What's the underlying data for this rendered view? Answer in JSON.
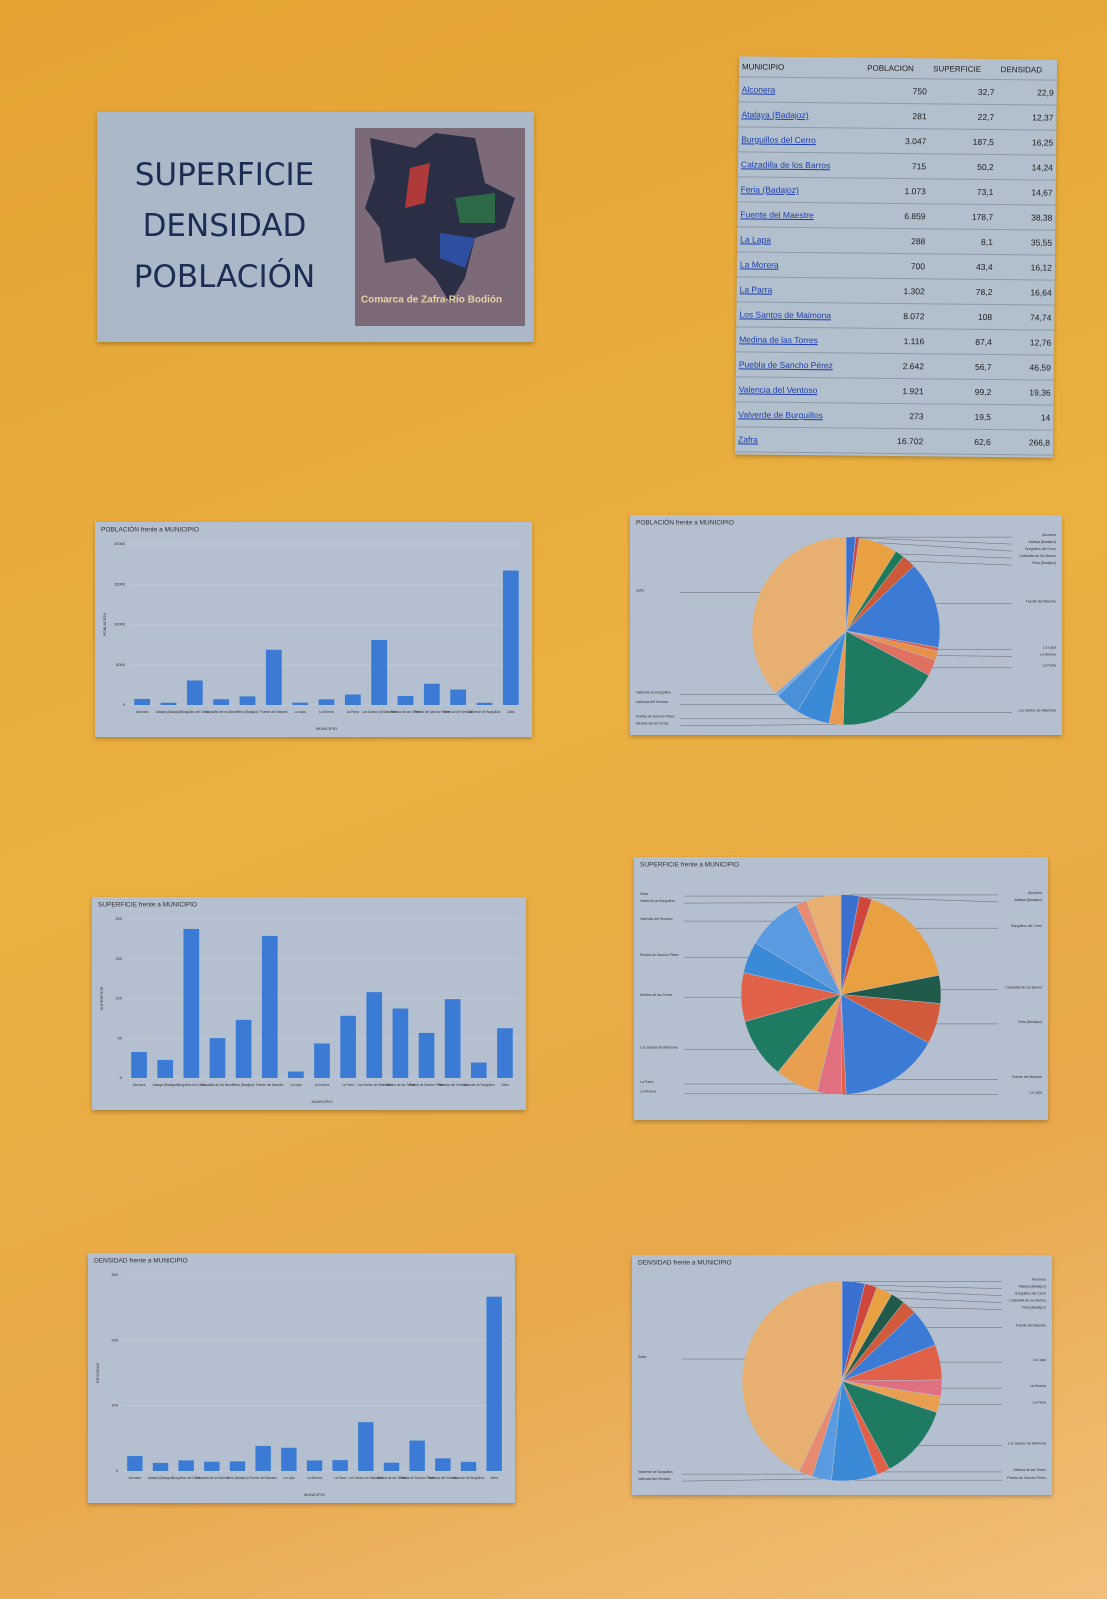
{
  "header": {
    "lines": [
      "SUPERFICIE",
      "DENSIDAD",
      "POBLACIÓN"
    ],
    "map_caption": "Comarca de Zafra-Río Bodión"
  },
  "table": {
    "columns": [
      "MUNICIPIO",
      "POBLACION",
      "SUPERFICIE",
      "DENSIDAD"
    ],
    "rows": [
      [
        "Alconera",
        "750",
        "32,7",
        "22,9"
      ],
      [
        "Atalaya (Badajoz)",
        "281",
        "22,7",
        "12,37"
      ],
      [
        "Burguillos del Cerro",
        "3.047",
        "187,5",
        "16,25"
      ],
      [
        "Calzadilla de los Barros",
        "715",
        "50,2",
        "14,24"
      ],
      [
        "Feria (Badajoz)",
        "1.073",
        "73,1",
        "14,67"
      ],
      [
        "Fuente del Maestre",
        "6.859",
        "178,7",
        "38,38"
      ],
      [
        "La Lapa",
        "288",
        "8,1",
        "35,55"
      ],
      [
        "La Morera",
        "700",
        "43,4",
        "16,12"
      ],
      [
        "La Parra",
        "1.302",
        "78,2",
        "16,64"
      ],
      [
        "Los Santos de Maimona",
        "8.072",
        "108",
        "74,74"
      ],
      [
        "Medina de las Torres",
        "1.116",
        "87,4",
        "12,76"
      ],
      [
        "Puebla de Sancho Pérez",
        "2.642",
        "56,7",
        "46,59"
      ],
      [
        "Valencia del Ventoso",
        "1.921",
        "99,2",
        "19,36"
      ],
      [
        "Valverde de Burguillos",
        "273",
        "19,5",
        "14"
      ],
      [
        "Zafra",
        "16.702",
        "62,6",
        "266,8"
      ]
    ]
  },
  "chart_data": [
    {
      "type": "bar",
      "title": "POBLACIÓN frente a MUNICIPIO",
      "x_label": "MUNICIPIO",
      "y_label": "POBLACIÓN",
      "color": "#3b7bd6",
      "categories": [
        "Alconera",
        "Atalaya (Badajoz)",
        "Burguillos del Cerro",
        "Calzadilla de los Barros",
        "Feria (Badajoz)",
        "Fuente del Maestre",
        "La Lapa",
        "La Morera",
        "La Parra",
        "Los Santos de Maimona",
        "Medina de las Torres",
        "Puebla de Sancho Pérez",
        "Valencia del Ventoso",
        "Valverde de Burguillos",
        "Zafra"
      ],
      "values": [
        750,
        281,
        3047,
        715,
        1073,
        6859,
        288,
        700,
        1302,
        8072,
        1116,
        2642,
        1921,
        273,
        16702
      ],
      "ylim": [
        0,
        20000
      ],
      "yticks": [
        0,
        5000,
        10000,
        15000,
        20000
      ],
      "grid": true
    },
    {
      "type": "pie",
      "title": "POBLACIÓN frente a MUNICIPIO",
      "categories": [
        "Alconera",
        "Atalaya (Badajoz)",
        "Burguillos del Cerro",
        "Calzadilla de los Barros",
        "Feria (Badajoz)",
        "Fuente del Maestre",
        "La Lapa",
        "La Morera",
        "La Parra",
        "Los Santos de Maimona",
        "Medina de las Torres",
        "Puebla de Sancho Pérez",
        "Valencia del Ventoso",
        "Valverde de Burguillos",
        "Zafra"
      ],
      "values": [
        750,
        281,
        3047,
        715,
        1073,
        6859,
        288,
        700,
        1302,
        8072,
        1116,
        2642,
        1921,
        273,
        16702
      ],
      "colors": [
        "#3b6fd0",
        "#d0453c",
        "#e8a040",
        "#1f7a5a",
        "#cc5a3a",
        "#3b7bd6",
        "#e0604a",
        "#e89048",
        "#e07060",
        "#1f7a62",
        "#e89a50",
        "#3a8ad8",
        "#4a90d8",
        "#7aa8e0",
        "#e8b070"
      ]
    },
    {
      "type": "bar",
      "title": "SUPERFICIE frente a MUNICIPIO",
      "x_label": "MUNICIPIO",
      "y_label": "SUPERFICIE",
      "color": "#3b7bd6",
      "categories": [
        "Alconera",
        "Atalaya (Badajoz)",
        "Burguillos del Cerro",
        "Calzadilla de los Barros",
        "Feria (Badajoz)",
        "Fuente del Maestre",
        "La Lapa",
        "La Morera",
        "La Parra",
        "Los Santos de Maimona",
        "Medina de las Torres",
        "Puebla de Sancho Pérez",
        "Valencia del Ventoso",
        "Valverde de Burguillos",
        "Zafra"
      ],
      "values": [
        32.7,
        22.7,
        187.5,
        50.2,
        73.1,
        178.7,
        8.1,
        43.4,
        78.2,
        108,
        87.4,
        56.7,
        99.2,
        19.5,
        62.6
      ],
      "ylim": [
        0,
        200
      ],
      "yticks": [
        0,
        50,
        100,
        150,
        200
      ],
      "grid": true
    },
    {
      "type": "pie",
      "title": "SUPERFICIE frente a MUNICIPIO",
      "categories": [
        "Alconera",
        "Atalaya (Badajoz)",
        "Burguillos del Cerro",
        "Calzadilla de los Barros",
        "Feria (Badajoz)",
        "Fuente del Maestre",
        "La Lapa",
        "La Morera",
        "La Parra",
        "Los Santos de Maimona",
        "Medina de las Torres",
        "Puebla de Sancho Pérez",
        "Valencia del Ventoso",
        "Valverde de Burguillos",
        "Zafra"
      ],
      "values": [
        32.7,
        22.7,
        187.5,
        50.2,
        73.1,
        178.7,
        8.1,
        43.4,
        78.2,
        108,
        87.4,
        56.7,
        99.2,
        19.5,
        62.6
      ],
      "colors": [
        "#3b6fd0",
        "#d0453c",
        "#e8a040",
        "#1f5a4a",
        "#d05a3a",
        "#3b7bd6",
        "#e0604a",
        "#e07080",
        "#e8a050",
        "#1f7a62",
        "#e06048",
        "#3a8ad8",
        "#5a9ae0",
        "#e88a70",
        "#e8b070"
      ]
    },
    {
      "type": "bar",
      "title": "DENSIDAD frente a MUNICIPIO",
      "x_label": "MUNICIPIO",
      "y_label": "DENSIDAD",
      "color": "#3b7bd6",
      "categories": [
        "Alconera",
        "Atalaya (Badajoz)",
        "Burguillos del Cerro",
        "Calzadilla de los Barros",
        "Feria (Badajoz)",
        "Fuente del Maestre",
        "La Lapa",
        "La Morera",
        "La Parra",
        "Los Santos de Maimona",
        "Medina de las Torres",
        "Puebla de Sancho Pérez",
        "Valencia del Ventoso",
        "Valverde de Burguillos",
        "Zafra"
      ],
      "values": [
        22.9,
        12.37,
        16.25,
        14.24,
        14.67,
        38.38,
        35.55,
        16.12,
        16.64,
        74.74,
        12.76,
        46.59,
        19.36,
        14,
        266.8
      ],
      "ylim": [
        0,
        300
      ],
      "yticks": [
        0,
        100,
        200,
        300
      ],
      "grid": true
    },
    {
      "type": "pie",
      "title": "DENSIDAD frente a MUNICIPIO",
      "categories": [
        "Alconera",
        "Atalaya (Badajoz)",
        "Burguillos del Cerro",
        "Calzadilla de los Barros",
        "Feria (Badajoz)",
        "Fuente del Maestre",
        "La Lapa",
        "La Morera",
        "La Parra",
        "Los Santos de Maimona",
        "Medina de las Torres",
        "Puebla de Sancho Pérez",
        "Valencia del Ventoso",
        "Valverde de Burguillos",
        "Zafra"
      ],
      "values": [
        22.9,
        12.37,
        16.25,
        14.24,
        14.67,
        38.38,
        35.55,
        16.12,
        16.64,
        74.74,
        12.76,
        46.59,
        19.36,
        14,
        266.8
      ],
      "colors": [
        "#3b6fd0",
        "#d0453c",
        "#e8a040",
        "#1f5a4a",
        "#d05a3a",
        "#3b7bd6",
        "#e0604a",
        "#e07080",
        "#e8a050",
        "#1f7a62",
        "#e06048",
        "#3a8ad8",
        "#5a9ae0",
        "#e88a70",
        "#e8b070"
      ]
    }
  ]
}
